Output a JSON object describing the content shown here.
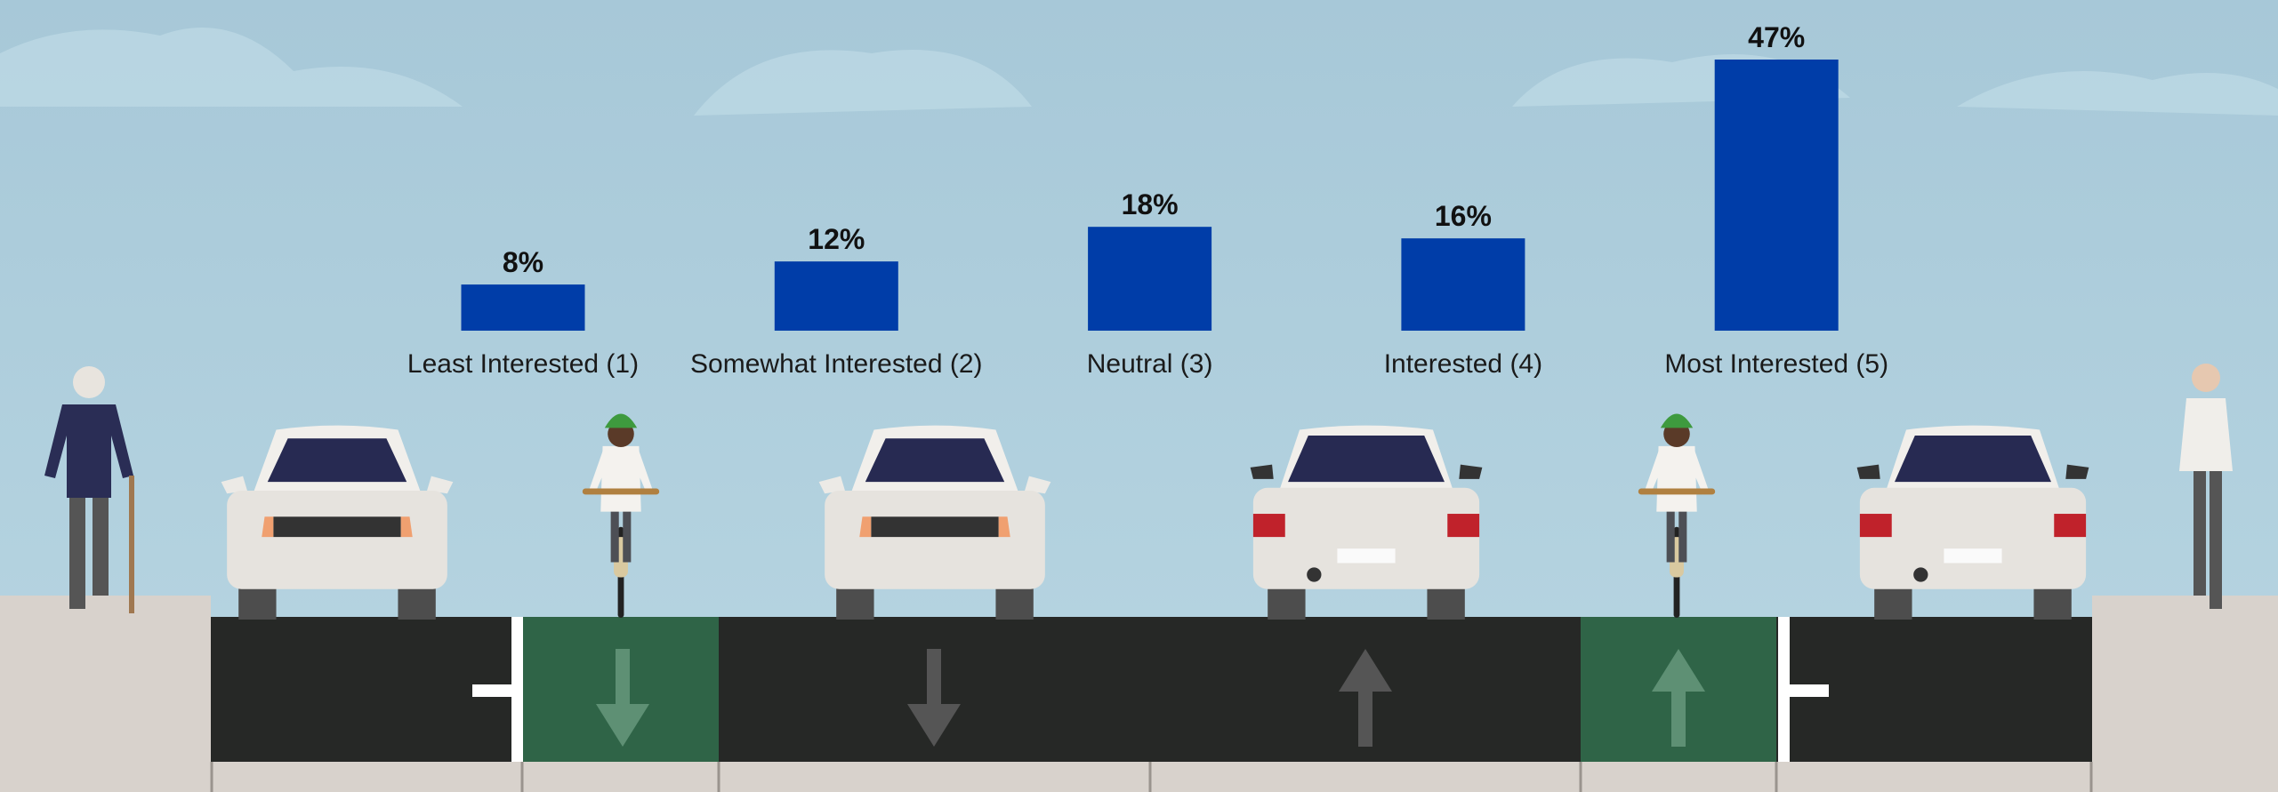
{
  "chart_data": {
    "type": "bar",
    "categories": [
      "Least Interested (1)",
      "Somewhat Interested (2)",
      "Neutral (3)",
      "Interested (4)",
      "Most Interested (5)"
    ],
    "values": [
      8,
      12,
      18,
      16,
      47
    ],
    "value_labels": [
      "8%",
      "12%",
      "18%",
      "16%",
      "47%"
    ],
    "color": "#003da8"
  }
}
